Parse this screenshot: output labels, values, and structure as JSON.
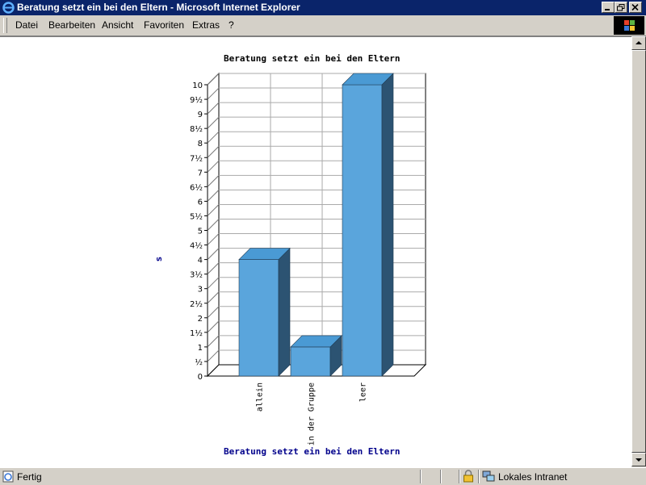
{
  "window": {
    "title": "Beratung setzt ein bei den Eltern - Microsoft Internet Explorer"
  },
  "menu": [
    {
      "label": "Datei"
    },
    {
      "label": "Bearbeiten"
    },
    {
      "label": "Ansicht"
    },
    {
      "label": "Favoriten"
    },
    {
      "label": "Extras"
    },
    {
      "label": "?"
    }
  ],
  "status": {
    "text": "Fertig",
    "zone": "Lokales Intranet"
  },
  "colors": {
    "titlebar": "#0a246a",
    "bar_front": "#5aa5dc",
    "bar_side": "#2c5372",
    "bar_top": "#4a9ad4",
    "axis_title": "#00008b"
  },
  "chart_data": {
    "type": "bar",
    "title": "Beratung setzt ein bei den Eltern",
    "caption": "Beratung setzt ein bei den Eltern",
    "ylabel": "s",
    "categories": [
      "allein",
      "in der Gruppe",
      "leer"
    ],
    "values": [
      4,
      1,
      10
    ],
    "ylim": [
      0,
      10
    ],
    "yticks": [
      "0",
      "½",
      "1",
      "1½",
      "2",
      "2½",
      "3",
      "3½",
      "4",
      "4½",
      "5",
      "5½",
      "6",
      "6½",
      "7",
      "7½",
      "8",
      "8½",
      "9",
      "9½",
      "10"
    ],
    "grid": true,
    "legend": "none"
  }
}
